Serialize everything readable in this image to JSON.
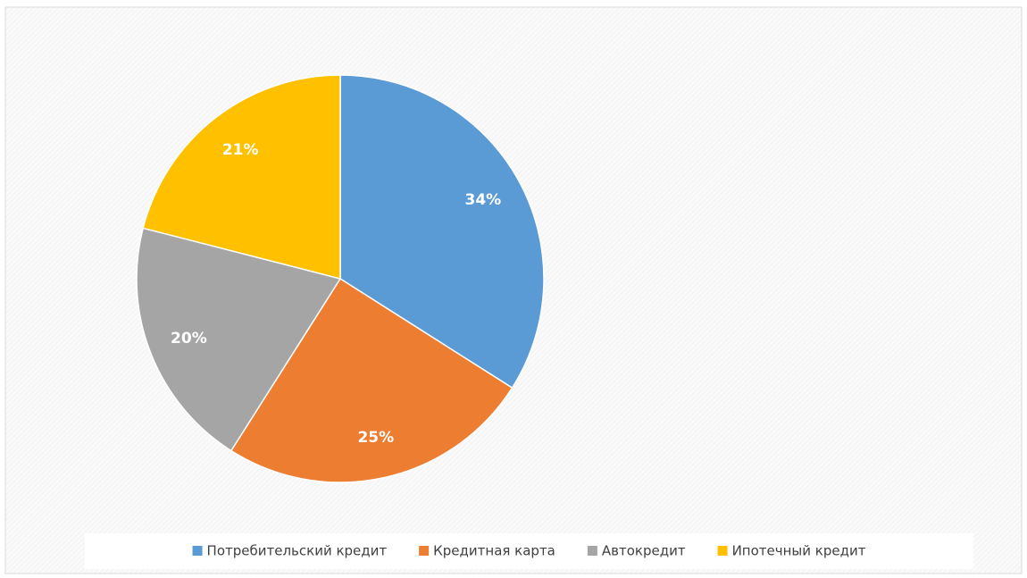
{
  "chart_data": {
    "type": "pie",
    "categories": [
      "Потребительский кредит",
      "Кредитная карта",
      "Автокредит",
      "Ипотечный кредит"
    ],
    "values": [
      34,
      25,
      20,
      21
    ],
    "value_labels": [
      "34%",
      "25%",
      "20%",
      "21%"
    ],
    "colors": [
      "#5b9bd5",
      "#ed7d31",
      "#a5a5a5",
      "#ffc000"
    ],
    "legend": "bottom"
  }
}
